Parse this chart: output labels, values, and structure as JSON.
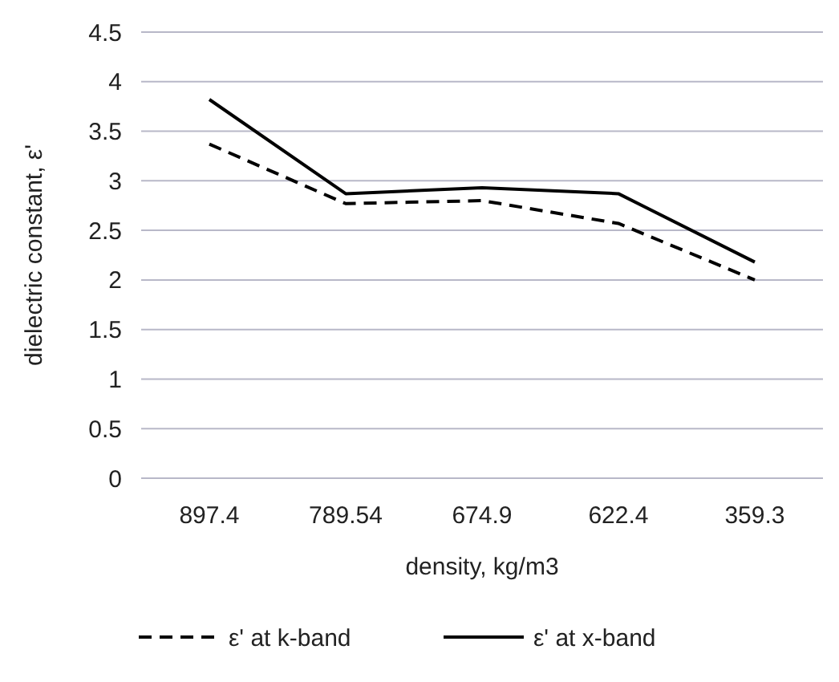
{
  "chart_data": {
    "type": "line",
    "xlabel": "density, kg/m3",
    "ylabel": "dielectric constant, ε'",
    "categories": [
      "897.4",
      "789.54",
      "674.9",
      "622.4",
      "359.3"
    ],
    "series": [
      {
        "name": "ε' at k-band",
        "color": "#000000",
        "line_style": "dashed",
        "values": [
          3.37,
          2.77,
          2.8,
          2.57,
          2.0
        ]
      },
      {
        "name": "ε' at x-band",
        "color": "#000000",
        "line_style": "solid",
        "values": [
          3.82,
          2.87,
          2.93,
          2.87,
          2.18
        ]
      }
    ],
    "ylim": [
      0,
      4.5
    ],
    "yticks": [
      0,
      0.5,
      1,
      1.5,
      2,
      2.5,
      3,
      3.5,
      4,
      4.5
    ],
    "grid": "y",
    "legend": "bottom",
    "marker": "none"
  }
}
